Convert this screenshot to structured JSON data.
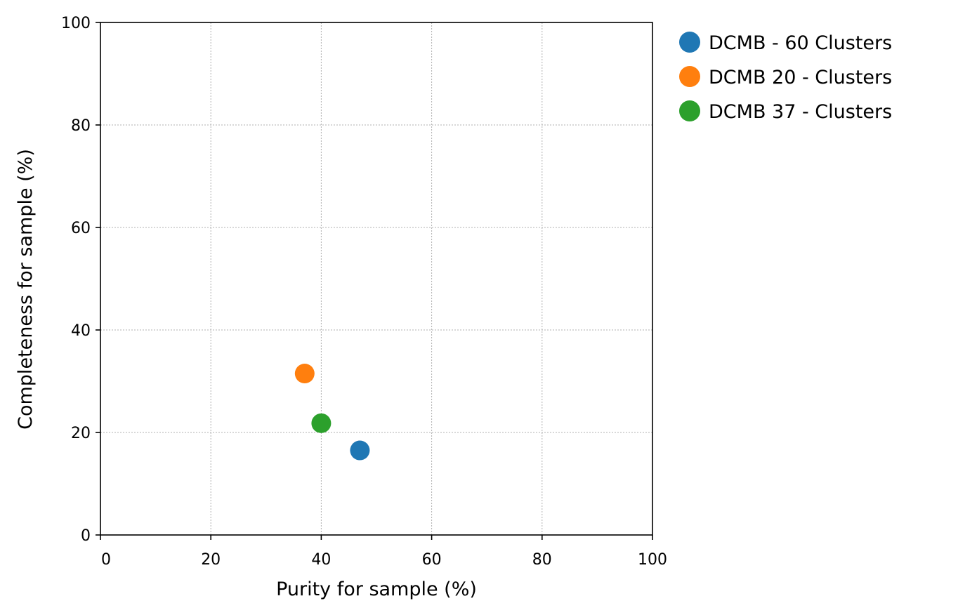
{
  "chart_data": {
    "type": "scatter",
    "title": "",
    "xlabel": "Purity for sample (%)",
    "ylabel": "Completeness for sample (%)",
    "xlim": [
      0,
      100
    ],
    "ylim": [
      0,
      100
    ],
    "xticks": [
      "0",
      "20",
      "40",
      "60",
      "80",
      "100"
    ],
    "yticks": [
      "0",
      "20",
      "40",
      "60",
      "80",
      "100"
    ],
    "grid": true,
    "legend_position": "outside-top-right",
    "series": [
      {
        "name": "DCMB - 60 Clusters",
        "color": "#1f77b4",
        "points": [
          {
            "x": 47.0,
            "y": 16.5
          }
        ]
      },
      {
        "name": "DCMB 20 - Clusters",
        "color": "#ff7f0e",
        "points": [
          {
            "x": 37.0,
            "y": 31.5
          }
        ]
      },
      {
        "name": "DCMB 37 - Clusters",
        "color": "#2ca02c",
        "points": [
          {
            "x": 40.0,
            "y": 21.8
          }
        ]
      }
    ]
  }
}
